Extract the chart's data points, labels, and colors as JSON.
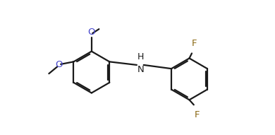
{
  "bg": "#ffffff",
  "bc": "#1a1a1a",
  "lw": 1.6,
  "fs": 9.5,
  "fc": "#8B6914",
  "oc": "#4444cc",
  "figsize": [
    3.9,
    1.91
  ],
  "dpi": 100,
  "xlim": [
    -0.1,
    4.1
  ],
  "ylim": [
    -0.55,
    1.55
  ],
  "Lcx": 1.0,
  "Lcy": 0.42,
  "Lr": 0.42,
  "Rcx": 2.98,
  "Rcy": 0.28,
  "Rr": 0.42,
  "nh_label": "HN",
  "O_label": "O",
  "F_label": "F"
}
